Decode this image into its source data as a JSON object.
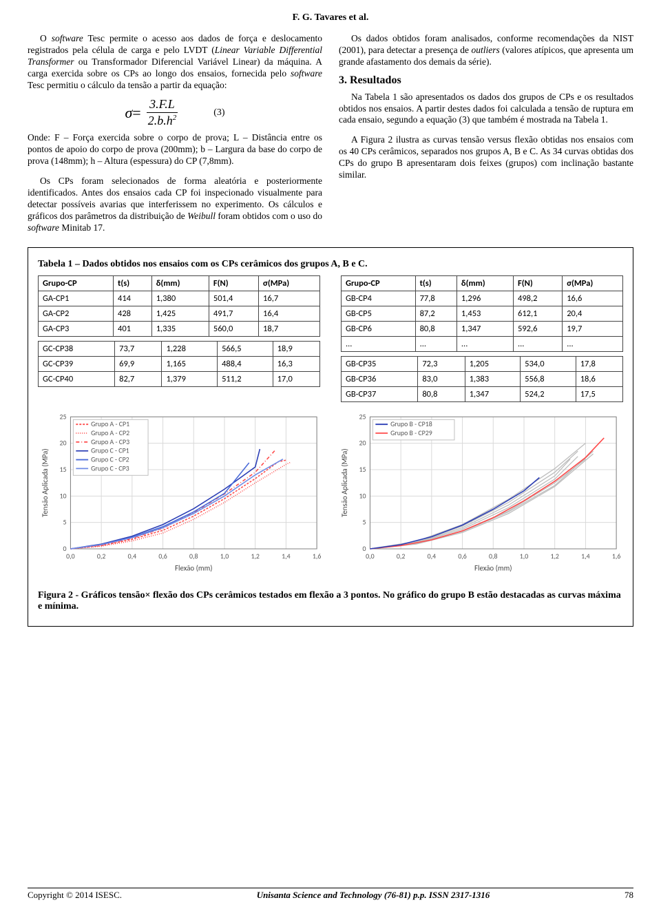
{
  "header": {
    "authors": "F. G. Tavares et al."
  },
  "left": {
    "p1a": "O ",
    "p1_sw1": "software",
    "p1b": " Tesc permite o acesso aos dados de força e deslocamento registrados pela célula de carga e pelo LVDT (",
    "p1_it": "Linear Variable Differential Transformer",
    "p1c": " ou Transformador Diferencial Variável Linear) da máquina. A carga exercida sobre os CPs ao longo dos ensaios, fornecida pelo ",
    "p1_sw2": "software",
    "p1d": " Tesc permitiu o cálculo da tensão a partir da equação:",
    "eq_sigma": "σ",
    "eq_eq": " = ",
    "eq_num": "3.F.L",
    "eq_den": "2.b.h",
    "eq_sup": "2",
    "eq_tag": "(3)",
    "p2": "Onde:      F – Força exercida sobre o corpo de prova; L – Distância entre os pontos de apoio do corpo de prova (200mm); b – Largura da base do corpo de prova (148mm); h – Altura (espessura) do CP (7,8mm).",
    "p3a": "Os CPs foram selecionados de forma aleatória e posteriormente identificados. Antes dos ensaios cada CP foi inspecionado visualmente para detectar possíveis avarias que interferissem no experimento. Os cálculos e gráficos dos parâmetros da distribuição de ",
    "p3_it": "Weibull",
    "p3b": " foram obtidos com o uso do ",
    "p3_sw": "software",
    "p3c": " Minitab 17."
  },
  "right": {
    "p1a": "Os dados obtidos foram analisados, conforme recomendações da NIST (2001), para detectar a presença de ",
    "p1_it": "outliers",
    "p1b": " (valores atípicos, que apresenta um grande afastamento dos demais da série).",
    "h": "3. Resultados",
    "p2": "Na Tabela 1 são apresentados os dados dos grupos de CPs e os resultados obtidos nos ensaios. A partir destes dados foi calculada a tensão de ruptura em cada ensaio, segundo a equação (3) que também é mostrada na Tabela 1.",
    "p3": "A Figura 2 ilustra as curvas tensão versus flexão obtidas nos ensaios com os 40 CPs cerâmicos, separados nos grupos A, B e C. As 34 curvas obtidas dos CPs do grupo B apresentaram dois feixes (grupos) com inclinação bastante similar."
  },
  "table": {
    "caption": "Tabela 1 – Dados obtidos nos ensaios com os CPs cerâmicos dos grupos A, B e C.",
    "headers": [
      "Grupo-CP",
      "t(s)",
      "δ(mm)",
      "F(N)",
      "σ(MPa)"
    ],
    "left_top": [
      [
        "GA-CP1",
        "414",
        "1,380",
        "501,4",
        "16,7"
      ],
      [
        "GA-CP2",
        "428",
        "1,425",
        "491,7",
        "16,4"
      ],
      [
        "GA-CP3",
        "401",
        "1,335",
        "560,0",
        "18,7"
      ]
    ],
    "left_bot": [
      [
        "GC-CP38",
        "73,7",
        "1,228",
        "566,5",
        "18,9"
      ],
      [
        "GC-CP39",
        "69,9",
        "1,165",
        "488,4",
        "16,3"
      ],
      [
        "GC-CP40",
        "82,7",
        "1,379",
        "511,2",
        "17,0"
      ]
    ],
    "right_top": [
      [
        "GB-CP4",
        "77,8",
        "1,296",
        "498,2",
        "16,6"
      ],
      [
        "GB-CP5",
        "87,2",
        "1,453",
        "612,1",
        "20,4"
      ],
      [
        "GB-CP6",
        "80,8",
        "1,347",
        "592,6",
        "19,7"
      ],
      [
        "...",
        "...",
        "...",
        "...",
        "..."
      ]
    ],
    "right_bot": [
      [
        "GB-CP35",
        "72,3",
        "1,205",
        "534,0",
        "17,8"
      ],
      [
        "GB-CP36",
        "83,0",
        "1,383",
        "556,8",
        "18,6"
      ],
      [
        "GB-CP37",
        "80,8",
        "1,347",
        "524,2",
        "17,5"
      ]
    ]
  },
  "charts": {
    "xlabel": "Flexão (mm)",
    "ylabel": "Tensão Aplicada (MPa)",
    "xticks": [
      "0,0",
      "0,2",
      "0,4",
      "0,6",
      "0,8",
      "1,0",
      "1,2",
      "1,4",
      "1,6"
    ],
    "yticks": [
      "0",
      "5",
      "10",
      "15",
      "20",
      "25"
    ],
    "xrange": [
      0,
      1.6
    ],
    "yrange": [
      0,
      25
    ],
    "grid_color": "#d9d9d9",
    "axis_color": "#7f7f7f",
    "tick_fontsize": 10,
    "label_fontsize": 11,
    "legend_fontsize": 10,
    "legend_border": "#bfbfbf",
    "chart1": {
      "legend": [
        {
          "label": "Grupo A - CP1",
          "color": "#ff4a4a",
          "dash": "3,2"
        },
        {
          "label": "Grupo A - CP2",
          "color": "#ff4a4a",
          "dash": "1,2"
        },
        {
          "label": "Grupo A - CP3",
          "color": "#ff4a4a",
          "dash": "5,3,1,3"
        },
        {
          "label": "Grupo C - CP1",
          "color": "#2a3db5",
          "dash": ""
        },
        {
          "label": "Grupo C - CP2",
          "color": "#4a6ad8",
          "dash": ""
        },
        {
          "label": "Grupo C - CP3",
          "color": "#6f8be6",
          "dash": ""
        }
      ],
      "series": [
        {
          "color": "#ff4a4a",
          "dash": "3,2",
          "pts": [
            [
              0,
              0
            ],
            [
              0.2,
              0.6
            ],
            [
              0.4,
              1.8
            ],
            [
              0.6,
              3.5
            ],
            [
              0.8,
              6.2
            ],
            [
              1.0,
              9.5
            ],
            [
              1.2,
              13.3
            ],
            [
              1.35,
              16.5
            ],
            [
              1.4,
              16.8
            ]
          ]
        },
        {
          "color": "#ff4a4a",
          "dash": "1,2",
          "pts": [
            [
              0,
              0
            ],
            [
              0.2,
              0.5
            ],
            [
              0.4,
              1.5
            ],
            [
              0.6,
              3.0
            ],
            [
              0.8,
              5.6
            ],
            [
              1.0,
              8.8
            ],
            [
              1.2,
              12.5
            ],
            [
              1.4,
              16.0
            ],
            [
              1.43,
              16.4
            ]
          ]
        },
        {
          "color": "#ff4a4a",
          "dash": "5,3,1,3",
          "pts": [
            [
              0,
              0
            ],
            [
              0.2,
              0.7
            ],
            [
              0.4,
              2.0
            ],
            [
              0.6,
              3.9
            ],
            [
              0.8,
              6.9
            ],
            [
              1.0,
              10.4
            ],
            [
              1.2,
              14.5
            ],
            [
              1.33,
              18.7
            ]
          ]
        },
        {
          "color": "#2a3db5",
          "dash": "",
          "pts": [
            [
              0,
              0
            ],
            [
              0.2,
              0.9
            ],
            [
              0.4,
              2.4
            ],
            [
              0.6,
              4.6
            ],
            [
              0.8,
              7.6
            ],
            [
              1.0,
              11.3
            ],
            [
              1.2,
              15.5
            ],
            [
              1.23,
              18.9
            ]
          ]
        },
        {
          "color": "#4a6ad8",
          "dash": "",
          "pts": [
            [
              0,
              0
            ],
            [
              0.2,
              0.8
            ],
            [
              0.4,
              2.2
            ],
            [
              0.6,
              4.2
            ],
            [
              0.8,
              7.0
            ],
            [
              1.0,
              10.5
            ],
            [
              1.16,
              16.3
            ]
          ]
        },
        {
          "color": "#6f8be6",
          "dash": "",
          "pts": [
            [
              0,
              0
            ],
            [
              0.2,
              0.8
            ],
            [
              0.4,
              2.1
            ],
            [
              0.6,
              4.0
            ],
            [
              0.8,
              6.7
            ],
            [
              1.0,
              10.0
            ],
            [
              1.2,
              14.0
            ],
            [
              1.38,
              17.0
            ]
          ]
        }
      ]
    },
    "chart2": {
      "legend": [
        {
          "label": "Grupo B - CP18",
          "color": "#2a3db5",
          "dash": ""
        },
        {
          "label": "Grupo B - CP29",
          "color": "#ff4a4a",
          "dash": ""
        }
      ],
      "bg_series_color": "#bdbdbd",
      "bg_series": [
        [
          [
            0,
            0
          ],
          [
            0.3,
            1.0
          ],
          [
            0.6,
            3.4
          ],
          [
            0.9,
            7.2
          ],
          [
            1.2,
            12.5
          ],
          [
            1.4,
            17.0
          ]
        ],
        [
          [
            0,
            0
          ],
          [
            0.3,
            1.1
          ],
          [
            0.6,
            3.7
          ],
          [
            0.9,
            7.8
          ],
          [
            1.2,
            13.2
          ],
          [
            1.35,
            17.5
          ]
        ],
        [
          [
            0,
            0
          ],
          [
            0.3,
            1.2
          ],
          [
            0.6,
            4.0
          ],
          [
            0.9,
            8.3
          ],
          [
            1.2,
            13.8
          ],
          [
            1.3,
            17.0
          ]
        ],
        [
          [
            0,
            0
          ],
          [
            0.3,
            1.3
          ],
          [
            0.6,
            4.3
          ],
          [
            0.9,
            8.8
          ],
          [
            1.2,
            14.5
          ],
          [
            1.35,
            18.5
          ]
        ],
        [
          [
            0,
            0
          ],
          [
            0.3,
            1.4
          ],
          [
            0.6,
            4.6
          ],
          [
            0.9,
            9.4
          ],
          [
            1.2,
            15.2
          ],
          [
            1.4,
            20.0
          ]
        ],
        [
          [
            0,
            0
          ],
          [
            0.3,
            0.9
          ],
          [
            0.6,
            3.1
          ],
          [
            0.9,
            6.7
          ],
          [
            1.2,
            11.8
          ],
          [
            1.45,
            18.0
          ]
        ],
        [
          [
            0,
            0
          ],
          [
            0.3,
            1.0
          ],
          [
            0.6,
            3.3
          ],
          [
            0.9,
            7.0
          ],
          [
            1.2,
            12.0
          ],
          [
            1.45,
            18.5
          ]
        ]
      ],
      "series": [
        {
          "color": "#ff4a4a",
          "dash": "",
          "pts": [
            [
              0,
              0
            ],
            [
              0.2,
              0.6
            ],
            [
              0.4,
              1.7
            ],
            [
              0.6,
              3.4
            ],
            [
              0.8,
              5.9
            ],
            [
              1.0,
              9.1
            ],
            [
              1.2,
              12.8
            ],
            [
              1.4,
              17.3
            ],
            [
              1.52,
              21.0
            ]
          ]
        },
        {
          "color": "#2a3db5",
          "dash": "",
          "pts": [
            [
              0,
              0
            ],
            [
              0.2,
              0.8
            ],
            [
              0.4,
              2.3
            ],
            [
              0.6,
              4.5
            ],
            [
              0.8,
              7.5
            ],
            [
              1.0,
              11.0
            ],
            [
              1.1,
              13.5
            ]
          ]
        }
      ]
    }
  },
  "figcap": "Figura 2 - Gráficos tensão× flexão dos CPs cerâmicos testados em flexão a 3 pontos. No gráfico do grupo B estão destacadas as curvas máxima e mínima.",
  "footer": {
    "left": "Copyright © 2014 ISESC.",
    "mid": "Unisanta Science and Technology   (76-81) p.p.    ISSN 2317-1316",
    "page": "78"
  }
}
